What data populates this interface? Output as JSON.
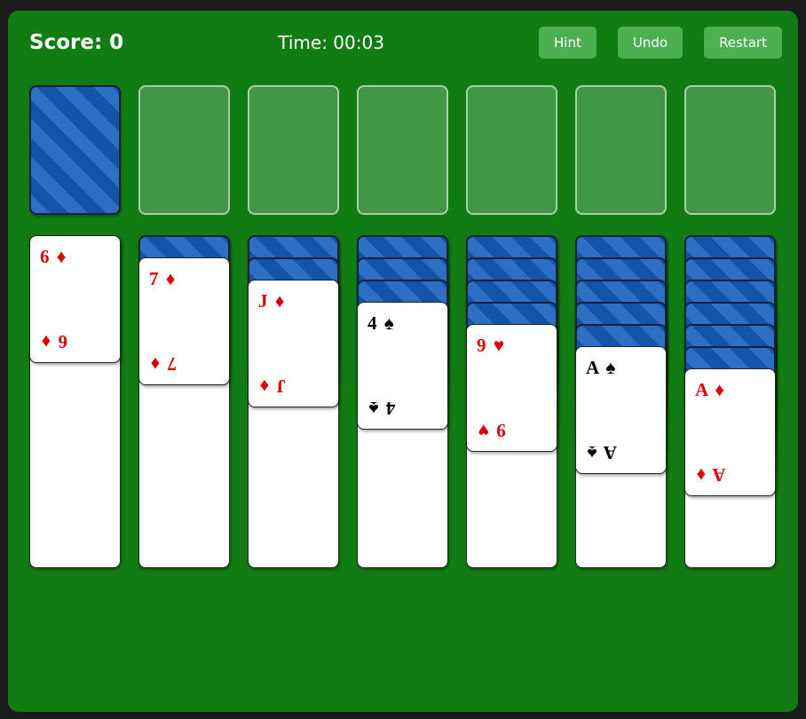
{
  "header": {
    "score_text": "Score: 0",
    "time_text": "Time: 00:03",
    "buttons": [
      "Hint",
      "Undo",
      "Restart"
    ]
  },
  "top_row": {
    "stock": {
      "state": "face-down",
      "style": "blue-diagonal-stripes"
    },
    "empty_slot_count": 6
  },
  "tableau": {
    "columns": [
      {
        "face_down_count": 0,
        "card": {
          "rank": "6",
          "suit": "♦",
          "label": "6 ♦",
          "color": "red"
        }
      },
      {
        "face_down_count": 1,
        "card": {
          "rank": "7",
          "suit": "♦",
          "label": "7 ♦",
          "color": "red"
        }
      },
      {
        "face_down_count": 2,
        "card": {
          "rank": "J",
          "suit": "♦",
          "label": "J ♦",
          "color": "red"
        }
      },
      {
        "face_down_count": 3,
        "card": {
          "rank": "4",
          "suit": "♠",
          "label": "4 ♠",
          "color": "black"
        }
      },
      {
        "face_down_count": 4,
        "card": {
          "rank": "9",
          "suit": "♥",
          "label": "9 ♥",
          "color": "red"
        }
      },
      {
        "face_down_count": 5,
        "card": {
          "rank": "A",
          "suit": "♠",
          "label": "A ♠",
          "color": "black"
        }
      },
      {
        "face_down_count": 6,
        "card": {
          "rank": "A",
          "suit": "♦",
          "label": "A ♦",
          "color": "red"
        }
      }
    ]
  },
  "colors": {
    "frame": "#1b1b1b",
    "felt": "#117c13",
    "button": "#4caf50",
    "empty_slot_fill": "#3e9342",
    "card_red": "#d80000",
    "card_black": "#000000",
    "card_back_base": "#1254a8",
    "card_back_stripe": "#2d6fc0"
  }
}
